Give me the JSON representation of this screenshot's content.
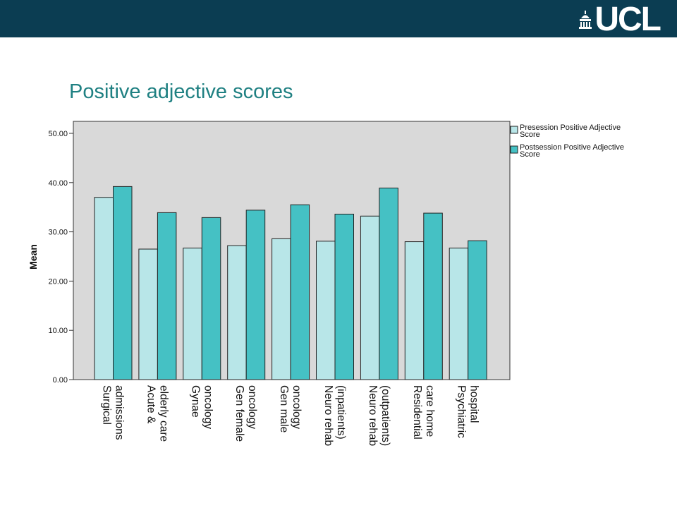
{
  "header": {
    "logo_text": "UCL",
    "background_color": "#0b3d52",
    "logo_icon": "ucl-portico-icon"
  },
  "slide": {
    "title": "Positive adjective scores",
    "title_color": "#1f8082"
  },
  "chart_data": {
    "type": "bar",
    "title": "",
    "xlabel": "",
    "ylabel": "Mean",
    "ylim": [
      0,
      50
    ],
    "yticks": [
      "0.00",
      "10.00",
      "20.00",
      "30.00",
      "40.00",
      "50.00"
    ],
    "grid": false,
    "legend_position": "right",
    "plot_background": "#d9d9d9",
    "categories": [
      [
        "Surgical",
        "admissions"
      ],
      [
        "Acute &",
        "elderly care"
      ],
      [
        "Gynae",
        "oncology"
      ],
      [
        "Gen female",
        "oncology"
      ],
      [
        "Gen male",
        "oncology"
      ],
      [
        "Neuro rehab",
        "(inpatients)"
      ],
      [
        "Neuro rehab",
        "(outpatients)"
      ],
      [
        "Residential",
        "care home"
      ],
      [
        "Psychiatric",
        "hospital"
      ]
    ],
    "series": [
      {
        "name": [
          "Presession Positive Adjective",
          "Score"
        ],
        "color": "#b8e6e8",
        "values": [
          37.0,
          26.5,
          26.7,
          27.2,
          28.6,
          28.1,
          33.2,
          28.0,
          26.7
        ]
      },
      {
        "name": [
          "Postsession Positive Adjective",
          "Score"
        ],
        "color": "#45c1c4",
        "values": [
          39.2,
          33.9,
          32.9,
          34.4,
          35.5,
          33.6,
          38.9,
          33.8,
          28.2
        ]
      }
    ]
  }
}
